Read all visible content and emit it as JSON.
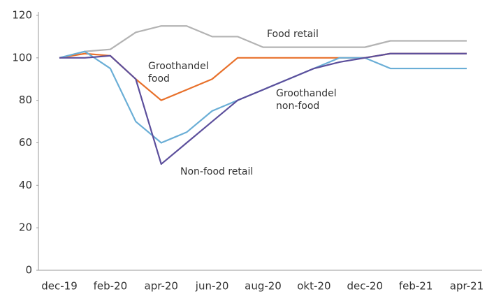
{
  "chart_data": {
    "type": "line",
    "categories": [
      "dec-19",
      null,
      "feb-20",
      null,
      "apr-20",
      null,
      "jun-20",
      null,
      "aug-20",
      null,
      "okt-20",
      null,
      "dec-20",
      null,
      "feb-21",
      null,
      "apr-21"
    ],
    "series": [
      {
        "name": "Food retail",
        "color": "#b3b3b3",
        "values": [
          100,
          103,
          104,
          112,
          115,
          115,
          110,
          110,
          105,
          105,
          105,
          105,
          105,
          108,
          108,
          108,
          108
        ]
      },
      {
        "name": "Groothandel food",
        "color": "#e8702a",
        "values": [
          100,
          102,
          101,
          90,
          80,
          85,
          90,
          100,
          100,
          100,
          100,
          100,
          100,
          102,
          102,
          102,
          102
        ]
      },
      {
        "name": "Groothandel non-food",
        "color": "#6aaed6",
        "values": [
          100,
          103,
          95,
          70,
          60,
          65,
          75,
          80,
          85,
          90,
          95,
          100,
          100,
          95,
          95,
          95,
          95
        ]
      },
      {
        "name": "Non-food retail",
        "color": "#5c4f9c",
        "values": [
          100,
          100,
          101,
          90,
          50,
          60,
          70,
          80,
          85,
          90,
          95,
          98,
          100,
          102,
          102,
          102,
          102
        ]
      }
    ],
    "ylim": [
      0,
      120
    ],
    "yticks": [
      0,
      20,
      40,
      60,
      80,
      100,
      120
    ],
    "grid": false
  }
}
